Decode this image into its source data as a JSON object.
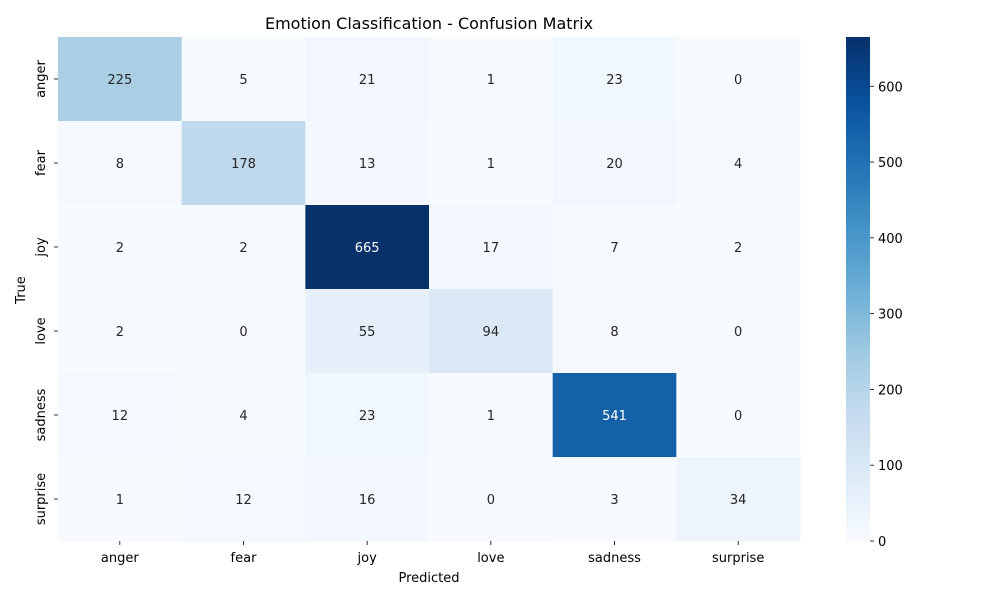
{
  "chart_data": {
    "type": "heatmap",
    "title": "Emotion Classification - Confusion Matrix",
    "xlabel": "Predicted",
    "ylabel": "True",
    "x_categories": [
      "anger",
      "fear",
      "joy",
      "love",
      "sadness",
      "surprise"
    ],
    "y_categories": [
      "anger",
      "fear",
      "joy",
      "love",
      "sadness",
      "surprise"
    ],
    "matrix": [
      [
        225,
        5,
        21,
        1,
        23,
        0
      ],
      [
        8,
        178,
        13,
        1,
        20,
        4
      ],
      [
        2,
        2,
        665,
        17,
        7,
        2
      ],
      [
        2,
        0,
        55,
        94,
        8,
        0
      ],
      [
        12,
        4,
        23,
        1,
        541,
        0
      ],
      [
        1,
        12,
        16,
        0,
        3,
        34
      ]
    ],
    "colorscale": "Blues",
    "colorbar": {
      "vmin": 0,
      "vmax": 665,
      "ticks": [
        0,
        100,
        200,
        300,
        400,
        500,
        600
      ]
    },
    "annotations": true
  }
}
